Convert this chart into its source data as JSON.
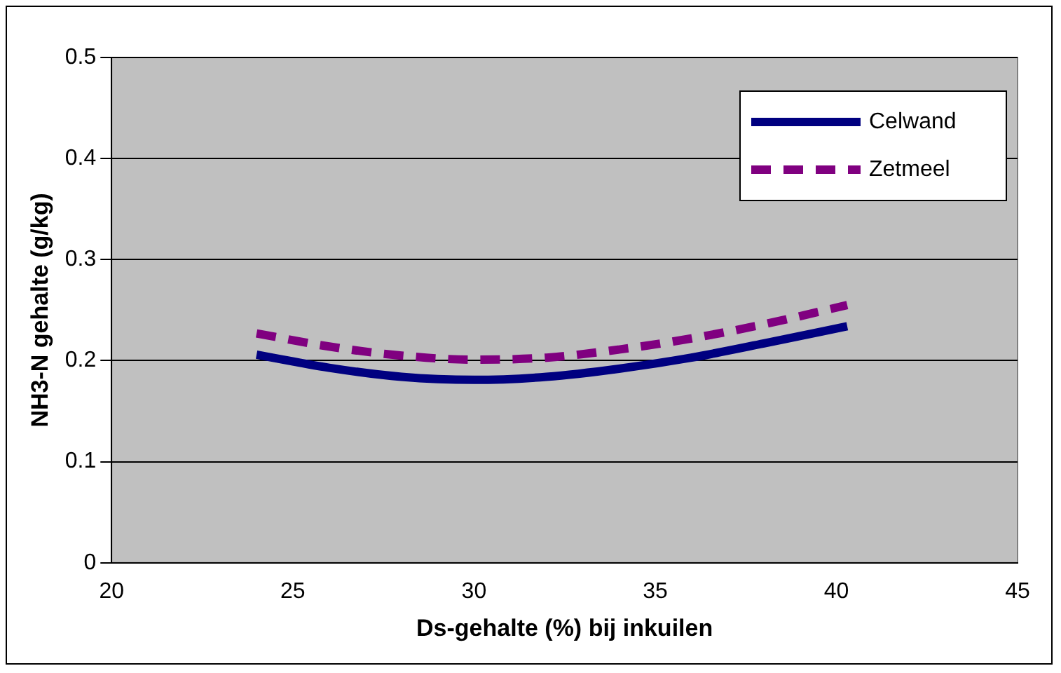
{
  "chart_data": {
    "type": "line",
    "xlabel": "Ds-gehalte (%) bij inkuilen",
    "ylabel": "NH3-N gehalte (g/kg)",
    "xlim": [
      20,
      45
    ],
    "xticks": [
      20,
      25,
      30,
      35,
      40,
      45
    ],
    "ylim": [
      0,
      0.5
    ],
    "yticks": [
      0,
      0.1,
      0.2,
      0.3,
      0.4,
      0.5
    ],
    "grid": "y",
    "legend": "top right",
    "marker": "none",
    "series": [
      {
        "name": "Celwand",
        "color": "#000080",
        "line_style": "solid",
        "x": [
          24,
          26,
          28,
          30,
          32,
          34,
          36,
          38,
          40.3
        ],
        "values": [
          0.206,
          0.193,
          0.184,
          0.181,
          0.184,
          0.192,
          0.203,
          0.217,
          0.234
        ]
      },
      {
        "name": "Zetmeel",
        "color": "#800080",
        "line_style": "dashed",
        "x": [
          24,
          26,
          28,
          30,
          32,
          34,
          36,
          38,
          40.3
        ],
        "values": [
          0.227,
          0.214,
          0.205,
          0.201,
          0.203,
          0.211,
          0.222,
          0.236,
          0.255
        ]
      }
    ]
  }
}
